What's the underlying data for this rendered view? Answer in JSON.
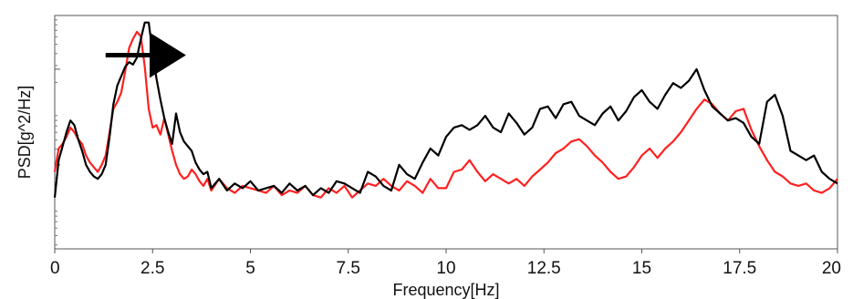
{
  "chart_data": {
    "type": "line",
    "title": "",
    "xlabel": "Frequency[Hz]",
    "ylabel": "PSD[g^2/Hz]",
    "xlim": [
      0,
      20
    ],
    "ylim": [
      0,
      1
    ],
    "y_scale": "log (tick labels not shown)",
    "grid": false,
    "legend": "none",
    "x_ticks": [
      0,
      2.5,
      5,
      7.5,
      10,
      12.5,
      15,
      17.5,
      20
    ],
    "x_tick_labels": [
      "0",
      "2.5",
      "5",
      "7.5",
      "10",
      "12.5",
      "15",
      "17.5",
      "20"
    ],
    "annotation": {
      "type": "arrow",
      "direction": "right",
      "x_from": 1.3,
      "x_to": 3.4,
      "y": 0.83,
      "color": "#000000"
    },
    "series": [
      {
        "color": "#000000",
        "x": [
          0,
          0.1,
          0.2,
          0.3,
          0.4,
          0.5,
          0.6,
          0.7,
          0.8,
          0.9,
          1.0,
          1.1,
          1.2,
          1.3,
          1.4,
          1.5,
          1.6,
          1.7,
          1.8,
          1.9,
          2.0,
          2.1,
          2.2,
          2.3,
          2.4,
          2.5,
          2.6,
          2.7,
          2.8,
          2.9,
          3.0,
          3.1,
          3.2,
          3.3,
          3.4,
          3.5,
          3.6,
          3.7,
          3.8,
          3.9,
          4.0,
          4.2,
          4.4,
          4.6,
          4.8,
          5.0,
          5.2,
          5.4,
          5.6,
          5.8,
          6.0,
          6.2,
          6.4,
          6.6,
          6.8,
          7.0,
          7.2,
          7.4,
          7.6,
          7.8,
          8.0,
          8.2,
          8.4,
          8.6,
          8.8,
          9.0,
          9.2,
          9.4,
          9.6,
          9.8,
          10.0,
          10.2,
          10.4,
          10.6,
          10.8,
          11.0,
          11.2,
          11.4,
          11.6,
          11.8,
          12.0,
          12.2,
          12.4,
          12.6,
          12.8,
          13.0,
          13.2,
          13.4,
          13.6,
          13.8,
          14.0,
          14.2,
          14.4,
          14.6,
          14.8,
          15.0,
          15.2,
          15.4,
          15.6,
          15.8,
          16.0,
          16.2,
          16.4,
          16.6,
          16.8,
          17.0,
          17.2,
          17.4,
          17.6,
          17.8,
          18.0,
          18.2,
          18.4,
          18.6,
          18.8,
          19.0,
          19.2,
          19.4,
          19.6,
          19.8,
          20.0
        ],
        "y": [
          0.22,
          0.38,
          0.44,
          0.5,
          0.55,
          0.53,
          0.47,
          0.42,
          0.36,
          0.33,
          0.31,
          0.3,
          0.32,
          0.36,
          0.48,
          0.62,
          0.7,
          0.74,
          0.78,
          0.8,
          0.79,
          0.82,
          0.9,
          0.97,
          0.97,
          0.84,
          0.73,
          0.64,
          0.56,
          0.5,
          0.45,
          0.58,
          0.5,
          0.46,
          0.44,
          0.42,
          0.37,
          0.34,
          0.32,
          0.33,
          0.26,
          0.3,
          0.25,
          0.28,
          0.26,
          0.29,
          0.25,
          0.26,
          0.27,
          0.24,
          0.28,
          0.25,
          0.27,
          0.23,
          0.26,
          0.24,
          0.29,
          0.28,
          0.26,
          0.24,
          0.33,
          0.31,
          0.27,
          0.25,
          0.36,
          0.32,
          0.3,
          0.37,
          0.43,
          0.4,
          0.48,
          0.52,
          0.53,
          0.51,
          0.53,
          0.57,
          0.52,
          0.5,
          0.58,
          0.54,
          0.49,
          0.52,
          0.6,
          0.61,
          0.56,
          0.62,
          0.63,
          0.57,
          0.55,
          0.53,
          0.58,
          0.61,
          0.55,
          0.59,
          0.65,
          0.68,
          0.63,
          0.6,
          0.66,
          0.71,
          0.69,
          0.72,
          0.77,
          0.68,
          0.61,
          0.58,
          0.55,
          0.56,
          0.54,
          0.48,
          0.45,
          0.63,
          0.66,
          0.57,
          0.42,
          0.4,
          0.38,
          0.4,
          0.33,
          0.3,
          0.28
        ]
      },
      {
        "color": "#ff2020",
        "x": [
          0,
          0.1,
          0.2,
          0.3,
          0.4,
          0.5,
          0.6,
          0.7,
          0.8,
          0.9,
          1.0,
          1.1,
          1.2,
          1.3,
          1.4,
          1.5,
          1.6,
          1.7,
          1.8,
          1.9,
          2.0,
          2.1,
          2.2,
          2.3,
          2.4,
          2.5,
          2.6,
          2.7,
          2.8,
          2.9,
          3.0,
          3.1,
          3.2,
          3.3,
          3.4,
          3.5,
          3.6,
          3.7,
          3.8,
          3.9,
          4.0,
          4.2,
          4.4,
          4.6,
          4.8,
          5.0,
          5.2,
          5.4,
          5.6,
          5.8,
          6.0,
          6.2,
          6.4,
          6.6,
          6.8,
          7.0,
          7.2,
          7.4,
          7.6,
          7.8,
          8.0,
          8.2,
          8.4,
          8.6,
          8.8,
          9.0,
          9.2,
          9.4,
          9.6,
          9.8,
          10.0,
          10.2,
          10.4,
          10.6,
          10.8,
          11.0,
          11.2,
          11.4,
          11.6,
          11.8,
          12.0,
          12.2,
          12.4,
          12.6,
          12.8,
          13.0,
          13.2,
          13.4,
          13.6,
          13.8,
          14.0,
          14.2,
          14.4,
          14.6,
          14.8,
          15.0,
          15.2,
          15.4,
          15.6,
          15.8,
          16.0,
          16.2,
          16.4,
          16.6,
          16.8,
          17.0,
          17.2,
          17.4,
          17.6,
          17.8,
          18.0,
          18.2,
          18.4,
          18.6,
          18.8,
          19.0,
          19.2,
          19.4,
          19.6,
          19.8,
          20.0
        ],
        "y": [
          0.33,
          0.43,
          0.45,
          0.48,
          0.52,
          0.5,
          0.47,
          0.45,
          0.4,
          0.37,
          0.35,
          0.33,
          0.36,
          0.4,
          0.5,
          0.6,
          0.63,
          0.67,
          0.76,
          0.86,
          0.9,
          0.93,
          0.91,
          0.78,
          0.6,
          0.52,
          0.53,
          0.49,
          0.56,
          0.49,
          0.42,
          0.36,
          0.32,
          0.3,
          0.31,
          0.34,
          0.32,
          0.29,
          0.27,
          0.3,
          0.25,
          0.3,
          0.26,
          0.24,
          0.27,
          0.26,
          0.25,
          0.24,
          0.27,
          0.23,
          0.25,
          0.24,
          0.27,
          0.23,
          0.22,
          0.26,
          0.24,
          0.27,
          0.22,
          0.25,
          0.28,
          0.27,
          0.3,
          0.27,
          0.25,
          0.29,
          0.27,
          0.24,
          0.3,
          0.26,
          0.26,
          0.33,
          0.34,
          0.38,
          0.33,
          0.29,
          0.32,
          0.3,
          0.28,
          0.3,
          0.27,
          0.31,
          0.34,
          0.37,
          0.41,
          0.43,
          0.46,
          0.47,
          0.44,
          0.4,
          0.37,
          0.33,
          0.3,
          0.31,
          0.35,
          0.4,
          0.43,
          0.39,
          0.43,
          0.46,
          0.5,
          0.55,
          0.6,
          0.64,
          0.62,
          0.58,
          0.55,
          0.59,
          0.6,
          0.51,
          0.44,
          0.38,
          0.33,
          0.31,
          0.28,
          0.27,
          0.28,
          0.25,
          0.24,
          0.26,
          0.3
        ]
      }
    ]
  }
}
